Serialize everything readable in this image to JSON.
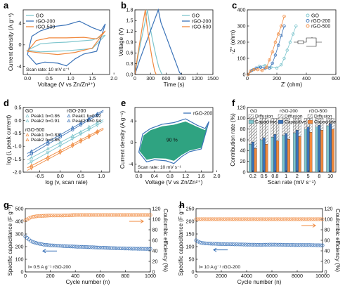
{
  "colors": {
    "go": "#7fc6ce",
    "rgo200": "#3b73b8",
    "rgo500": "#f0893e",
    "fillInside": "#2fa381",
    "diffusionFill": "#d9d9d9",
    "capacitiveA": "#3b73b8",
    "capacitiveB": "#f0893e",
    "capacitiveGO": "#7fc6ce",
    "textDark": "#111111"
  },
  "panels": {
    "a": "a",
    "b": "b",
    "c": "c",
    "d": "d",
    "e": "e",
    "f": "f",
    "g": "g",
    "h": "h"
  },
  "chart_data": [
    {
      "id": "a",
      "type": "line",
      "xlabel": "Voltage (V vs Zn/Zn²⁺)",
      "ylabel": "Current density (A g⁻¹)",
      "xlim": [
        -0.1,
        1.9
      ],
      "ylim": [
        -5.5,
        6.5
      ],
      "xticks": [
        0.0,
        0.5,
        1.0,
        1.5,
        2.0
      ],
      "yticks": [
        -4,
        0,
        4
      ],
      "annotation": "Scan rate: 10 mV s⁻¹",
      "legend": [
        "GO",
        "rGO-200",
        "rGO-500"
      ],
      "series": [
        {
          "name": "GO",
          "x": [
            0.0,
            0.3,
            0.6,
            0.9,
            1.2,
            1.5,
            1.8,
            1.5,
            1.2,
            0.9,
            0.6,
            0.3,
            0.0
          ],
          "y": [
            -1.0,
            0.2,
            0.4,
            0.5,
            0.7,
            0.9,
            1.8,
            -0.7,
            -0.9,
            -1.1,
            -1.2,
            -1.3,
            -1.0
          ]
        },
        {
          "name": "rGO-200",
          "x": [
            0.0,
            0.1,
            0.3,
            0.6,
            0.9,
            1.2,
            1.5,
            1.7,
            1.8,
            1.6,
            1.3,
            1.1,
            0.9,
            0.7,
            0.4,
            0.2,
            0.0
          ],
          "y": [
            -1.8,
            1.6,
            2.6,
            3.4,
            3.7,
            4.4,
            3.2,
            2.6,
            3.9,
            -1.2,
            -1.7,
            -2.6,
            -3.9,
            -3.4,
            -3.2,
            -3.6,
            -1.8
          ]
        },
        {
          "name": "rGO-500",
          "x": [
            0.0,
            0.2,
            0.5,
            0.9,
            1.3,
            1.6,
            1.8,
            1.5,
            1.1,
            0.7,
            0.3,
            0.0
          ],
          "y": [
            -1.2,
            0.8,
            1.3,
            1.3,
            1.4,
            1.1,
            2.6,
            -0.6,
            -1.4,
            -1.8,
            -1.5,
            -1.2
          ]
        }
      ]
    },
    {
      "id": "b",
      "type": "line",
      "xlabel": "Time (s)",
      "ylabel": "Voltage (V)",
      "xlim": [
        0,
        1500
      ],
      "ylim": [
        0.0,
        1.8
      ],
      "xticks": [
        0,
        300,
        600,
        900,
        1200,
        1500
      ],
      "yticks": [
        0.0,
        0.3,
        0.6,
        0.9,
        1.2,
        1.5,
        1.8
      ],
      "legend": [
        "GO",
        "rGO-200",
        "rGO-500"
      ],
      "series": [
        {
          "name": "GO",
          "x": [
            0,
            60,
            120,
            180,
            240,
            280,
            340,
            400,
            460,
            520
          ],
          "y": [
            0.0,
            0.5,
            0.95,
            1.35,
            1.8,
            1.4,
            0.95,
            0.55,
            0.2,
            0.0
          ]
        },
        {
          "name": "rGO-200",
          "x": [
            0,
            90,
            180,
            270,
            360,
            450,
            500,
            590,
            680,
            770,
            860,
            900
          ],
          "y": [
            0.0,
            0.4,
            0.75,
            1.1,
            1.45,
            1.8,
            1.45,
            1.1,
            0.75,
            0.4,
            0.05,
            0.0
          ]
        },
        {
          "name": "rGO-500",
          "x": [
            0,
            50,
            100,
            150,
            200,
            230,
            280,
            330,
            380,
            410
          ],
          "y": [
            0.0,
            0.5,
            0.95,
            1.4,
            1.8,
            1.4,
            0.9,
            0.45,
            0.1,
            0.0
          ]
        }
      ]
    },
    {
      "id": "c",
      "type": "scatter",
      "xlabel": "Z' (ohm)",
      "ylabel": "-Z'' (ohm)",
      "xlim": [
        0,
        600
      ],
      "ylim": [
        0,
        400
      ],
      "xticks": [
        0,
        200,
        400,
        600
      ],
      "yticks": [
        0,
        100,
        200,
        300,
        400
      ],
      "legend": [
        "GO",
        "rGO-200",
        "rGO-500"
      ],
      "series": [
        {
          "name": "GO",
          "x": [
            5,
            40,
            80,
            120,
            160,
            200,
            230,
            250,
            270,
            290,
            310,
            330
          ],
          "y": [
            0,
            30,
            50,
            55,
            45,
            40,
            60,
            100,
            150,
            200,
            250,
            300
          ]
        },
        {
          "name": "rGO-200",
          "x": [
            5,
            30,
            60,
            90,
            120,
            150,
            170,
            190,
            210,
            230,
            250
          ],
          "y": [
            0,
            25,
            40,
            45,
            38,
            40,
            70,
            120,
            180,
            240,
            300
          ]
        },
        {
          "name": "rGO-500",
          "x": [
            5,
            20,
            45,
            70,
            100,
            130,
            150,
            170,
            190,
            210,
            230,
            250
          ],
          "y": [
            0,
            20,
            30,
            30,
            25,
            45,
            90,
            140,
            200,
            250,
            300,
            360
          ]
        }
      ]
    },
    {
      "id": "d",
      "type": "scatter",
      "xlabel": "log (v, scan rate)",
      "ylabel": "log (i, peak current)",
      "xlim": [
        -0.9,
        1.2
      ],
      "ylim": [
        -2.0,
        0.5
      ],
      "xticks": [
        -0.5,
        0.0,
        0.5,
        1.0
      ],
      "yticks": [
        -2.0,
        -1.5,
        -1.0,
        -0.5,
        0.0,
        0.5
      ],
      "legend_groups": [
        {
          "title": "GO",
          "entries": [
            "Peak1 b=0.86",
            "Peak2 b=0.91"
          ]
        },
        {
          "title": "rGO-200",
          "entries": [
            "Peak1 b=0.92",
            "Peak2 b=0.94"
          ]
        },
        {
          "title": "rGO-500",
          "entries": [
            "Peak1 b=0.83",
            "Peak2 b=0.86"
          ]
        }
      ],
      "series": [
        {
          "name": "GO Peak1",
          "x": [
            -0.7,
            -0.3,
            0.0,
            0.3,
            0.5,
            0.7,
            0.9
          ],
          "y": [
            -1.45,
            -1.1,
            -0.85,
            -0.6,
            -0.45,
            -0.25,
            -0.1
          ]
        },
        {
          "name": "GO Peak2",
          "x": [
            -0.7,
            -0.3,
            0.0,
            0.3,
            0.5,
            0.7,
            0.9
          ],
          "y": [
            -1.6,
            -1.25,
            -0.98,
            -0.7,
            -0.52,
            -0.35,
            -0.18
          ]
        },
        {
          "name": "rGO-200 Peak1",
          "x": [
            -0.7,
            -0.3,
            0.0,
            0.3,
            0.5,
            0.7,
            0.9
          ],
          "y": [
            -1.2,
            -0.82,
            -0.55,
            -0.28,
            -0.1,
            0.08,
            0.25
          ]
        },
        {
          "name": "rGO-200 Peak2",
          "x": [
            -0.7,
            -0.3,
            0.0,
            0.3,
            0.5,
            0.7,
            0.9
          ],
          "y": [
            -1.3,
            -0.92,
            -0.64,
            -0.36,
            -0.17,
            0.02,
            0.2
          ]
        },
        {
          "name": "rGO-500 Peak1",
          "x": [
            -0.7,
            -0.3,
            0.0,
            0.3,
            0.5,
            0.7,
            0.9
          ],
          "y": [
            -1.75,
            -1.42,
            -1.17,
            -0.92,
            -0.75,
            -0.58,
            -0.42
          ]
        },
        {
          "name": "rGO-500 Peak2",
          "x": [
            -0.7,
            -0.3,
            0.0,
            0.3,
            0.5,
            0.7,
            0.9
          ],
          "y": [
            -1.85,
            -1.5,
            -1.25,
            -0.99,
            -0.82,
            -0.65,
            -0.48
          ]
        }
      ]
    },
    {
      "id": "e",
      "type": "area",
      "xlabel": "Voltage (V vs Zn/Zn²⁺)",
      "ylabel": "Current density (A g⁻¹)",
      "xlim": [
        -0.1,
        1.9
      ],
      "ylim": [
        -5.5,
        6.5
      ],
      "xticks": [
        0.0,
        0.4,
        0.8,
        1.2,
        1.6,
        2.0
      ],
      "yticks": [
        -4,
        0,
        4
      ],
      "annotation": "Scan rate: 10 mV s⁻¹",
      "inside_label": "90 %",
      "legend": [
        "rGO-200"
      ],
      "outer": {
        "x": [
          0.0,
          0.1,
          0.3,
          0.6,
          0.9,
          1.2,
          1.5,
          1.7,
          1.8,
          1.6,
          1.3,
          1.1,
          0.9,
          0.7,
          0.4,
          0.2,
          0.0
        ],
        "y": [
          -1.8,
          1.6,
          2.6,
          3.4,
          3.7,
          4.4,
          3.2,
          2.6,
          3.9,
          -1.2,
          -1.7,
          -2.6,
          -3.9,
          -3.4,
          -3.2,
          -3.6,
          -1.8
        ]
      },
      "inner": {
        "x": [
          0.02,
          0.12,
          0.3,
          0.6,
          0.9,
          1.2,
          1.5,
          1.7,
          1.78,
          1.6,
          1.3,
          1.1,
          0.9,
          0.7,
          0.4,
          0.2,
          0.02
        ],
        "y": [
          -1.6,
          1.3,
          2.3,
          3.0,
          3.3,
          3.9,
          2.9,
          2.3,
          3.5,
          -1.0,
          -1.5,
          -2.3,
          -3.4,
          -3.0,
          -2.9,
          -3.2,
          -1.6
        ]
      }
    },
    {
      "id": "f",
      "type": "bar",
      "xlabel": "Scan rate (mV s⁻¹)",
      "ylabel": "Contribution rate (%)",
      "ylim": [
        0,
        120
      ],
      "yticks": [
        0,
        20,
        40,
        60,
        80,
        100,
        120
      ],
      "categories": [
        "0.2",
        "0.5",
        "0.8",
        "1",
        "2",
        "5",
        "8",
        "10"
      ],
      "legend": [
        "GO",
        "rGO-200",
        "rGO-500",
        "Diffusion",
        "Diffusion",
        "Diffusion",
        "Capacitive",
        "Capacitive",
        "Capacitive"
      ],
      "series": [
        {
          "name": "GO",
          "values": [
            52,
            60,
            65,
            68,
            73,
            80,
            84,
            86
          ]
        },
        {
          "name": "rGO-200",
          "values": [
            56,
            64,
            70,
            72,
            78,
            84,
            87,
            90
          ]
        },
        {
          "name": "rGO-500",
          "values": [
            44,
            52,
            58,
            61,
            66,
            74,
            78,
            80
          ]
        }
      ]
    },
    {
      "id": "g",
      "type": "scatter",
      "xlabel": "Cycle number (n)",
      "ylabel": "Specific capacitance (F g⁻¹)",
      "y2label": "Coulombic efficiency (%)",
      "xlim": [
        0,
        1000
      ],
      "ylim": [
        0,
        500
      ],
      "y2lim": [
        0,
        120
      ],
      "xticks": [
        0,
        200,
        400,
        600,
        800,
        1000
      ],
      "yticks": [
        0,
        100,
        200,
        300,
        400,
        500
      ],
      "y2ticks": [
        0,
        20,
        40,
        60,
        80,
        100,
        120
      ],
      "annotation": "I= 0.5 A g⁻¹ rGO-200",
      "series": [
        {
          "name": "Specific capacitance",
          "x": [
            0,
            50,
            100,
            150,
            200,
            300,
            400,
            500,
            600,
            700,
            800,
            900,
            1000
          ],
          "y": [
            280,
            240,
            225,
            215,
            210,
            205,
            200,
            196,
            192,
            188,
            185,
            183,
            182
          ]
        },
        {
          "name": "Coulombic efficiency",
          "x": [
            0,
            50,
            100,
            200,
            300,
            400,
            500,
            600,
            700,
            800,
            900,
            1000
          ],
          "y": [
            98,
            104,
            106,
            107,
            107,
            108,
            108,
            108,
            108,
            108,
            108,
            108
          ]
        }
      ]
    },
    {
      "id": "h",
      "type": "scatter",
      "xlabel": "Cycle number (n)",
      "ylabel": "Specific capacitance (F g⁻¹)",
      "y2label": "Coulombic efficiency (%)",
      "xlim": [
        0,
        10000
      ],
      "ylim": [
        0,
        250
      ],
      "y2lim": [
        0,
        120
      ],
      "xticks": [
        0,
        2000,
        4000,
        6000,
        8000,
        10000
      ],
      "yticks": [
        0,
        50,
        100,
        150,
        200,
        250
      ],
      "y2ticks": [
        0,
        20,
        40,
        60,
        80,
        100,
        120
      ],
      "annotation": "I= 10 A g⁻¹ rGO-200",
      "series": [
        {
          "name": "Specific capacitance",
          "x": [
            0,
            200,
            500,
            1000,
            2000,
            3000,
            4000,
            5000,
            6000,
            7000,
            8000,
            9000,
            10000
          ],
          "y": [
            125,
            118,
            114,
            112,
            110,
            109,
            108,
            107,
            108,
            107,
            106,
            106,
            105
          ]
        },
        {
          "name": "Coulombic efficiency",
          "x": [
            0,
            500,
            1000,
            2000,
            3000,
            4000,
            5000,
            6000,
            7000,
            8000,
            9000,
            10000
          ],
          "y": [
            100,
            100,
            100,
            100,
            100,
            100,
            100,
            100,
            100,
            100,
            100,
            100
          ]
        }
      ]
    }
  ]
}
